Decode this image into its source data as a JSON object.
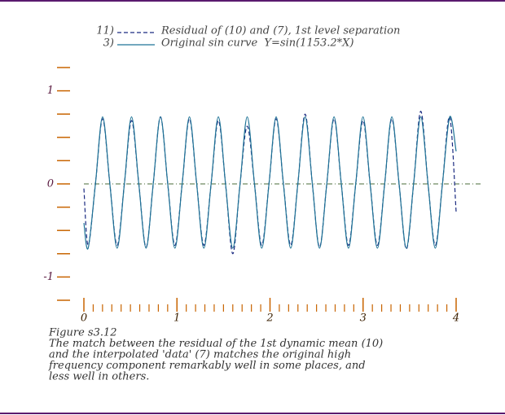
{
  "chart_data": {
    "type": "line",
    "series": [
      {
        "id": "11)",
        "name": "Residual of (10) and (7), 1st level separation",
        "color": "#1a2a80",
        "dash": true,
        "values": [
          -0.05,
          -0.66,
          0,
          0.7,
          0,
          -0.66,
          0,
          0.68,
          0,
          -0.68,
          0,
          0.72,
          0,
          -0.66,
          0,
          0.7,
          0,
          -0.66,
          0,
          0.68,
          0,
          -0.75,
          0,
          0.62,
          0,
          -0.66,
          0,
          0.7,
          0,
          -0.66,
          0,
          0.75,
          0,
          -0.68,
          0,
          0.7,
          0,
          -0.66,
          0,
          0.68,
          0,
          -0.66,
          0,
          0.7,
          0,
          -0.7,
          0,
          0.78,
          0,
          -0.66,
          0,
          0.72,
          -0.3
        ]
      },
      {
        "id": "3)",
        "name": "Original sin curve  Y=sin(1153.2*X)",
        "color": "#1f7396",
        "dash": false,
        "values": [
          -0.42,
          -0.69,
          0,
          0.72,
          0,
          -0.69,
          0,
          0.72,
          0,
          -0.69,
          0,
          0.72,
          0,
          -0.69,
          0,
          0.72,
          0,
          -0.69,
          0,
          0.72,
          0,
          -0.69,
          0,
          0.72,
          0,
          -0.69,
          0,
          0.72,
          0,
          -0.69,
          0,
          0.72,
          0,
          -0.69,
          0,
          0.72,
          0,
          -0.69,
          0,
          0.72,
          0,
          -0.69,
          0,
          0.72,
          0,
          -0.69,
          0,
          0.72,
          0,
          -0.69,
          0,
          0.72,
          0.35
        ]
      }
    ],
    "x": [
      0,
      0.046,
      0.124,
      0.201,
      0.279,
      0.357,
      0.435,
      0.512,
      0.59,
      0.668,
      0.745,
      0.823,
      0.901,
      0.978,
      1.056,
      1.134,
      1.212,
      1.289,
      1.367,
      1.445,
      1.522,
      1.6,
      1.678,
      1.755,
      1.833,
      1.911,
      1.989,
      2.066,
      2.144,
      2.222,
      2.299,
      2.377,
      2.455,
      2.532,
      2.61,
      2.688,
      2.766,
      2.843,
      2.921,
      2.999,
      3.076,
      3.154,
      3.232,
      3.309,
      3.387,
      3.465,
      3.543,
      3.62,
      3.698,
      3.776,
      3.853,
      3.931,
      4
    ],
    "xlim": [
      0,
      4
    ],
    "xticks": [
      0,
      1,
      2,
      3,
      4
    ],
    "xminorticks": [
      0.1,
      0.2,
      0.3,
      0.4,
      0.5,
      0.6,
      0.7,
      0.8,
      0.9,
      1.1,
      1.2,
      1.3,
      1.4,
      1.5,
      1.6,
      1.7,
      1.8,
      1.9,
      2.1,
      2.2,
      2.3,
      2.4,
      2.5,
      2.6,
      2.7,
      2.8,
      2.9,
      3.1,
      3.2,
      3.3,
      3.4,
      3.5,
      3.6,
      3.7,
      3.8,
      3.9
    ],
    "ylim": [
      -1.25,
      1.25
    ],
    "yticks": [
      -1,
      0,
      1
    ],
    "yminorticks": [
      -1.25,
      -0.75,
      -0.5,
      -0.25,
      0.25,
      0.5,
      0.75,
      1.25
    ],
    "zero_line": 0,
    "caption": [
      "Figure s3.12",
      "The match between the residual of the 1st dynamic mean (10)",
      "and the interpolated 'data' (7) matches the original high",
      "frequency component remarkably well in some places, and",
      "less well in others."
    ]
  }
}
